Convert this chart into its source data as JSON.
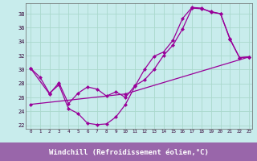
{
  "xlabel": "Windchill (Refroidissement éolien,°C)",
  "background_color": "#c8ecec",
  "grid_color": "#aad8cc",
  "line_color": "#990099",
  "xlabel_bg": "#9966aa",
  "xlim_min": -0.5,
  "xlim_max": 23.3,
  "ylim_min": 21.5,
  "ylim_max": 39.5,
  "xticks": [
    0,
    1,
    2,
    3,
    4,
    5,
    6,
    7,
    8,
    9,
    10,
    11,
    12,
    13,
    14,
    15,
    16,
    17,
    18,
    19,
    20,
    21,
    22,
    23
  ],
  "yticks": [
    22,
    24,
    26,
    28,
    30,
    32,
    34,
    36,
    38
  ],
  "curve1_x": [
    0,
    1,
    2,
    3,
    4,
    5,
    6,
    7,
    8,
    9,
    10,
    11,
    12,
    13,
    14,
    15,
    16,
    17,
    18,
    19,
    20,
    21,
    22,
    23
  ],
  "curve1_y": [
    30.2,
    28.9,
    26.6,
    27.8,
    24.4,
    23.7,
    22.3,
    22.1,
    22.2,
    23.2,
    25.0,
    27.6,
    30.0,
    31.9,
    32.5,
    34.2,
    37.3,
    38.9,
    38.8,
    38.2,
    38.0,
    34.3,
    31.7,
    31.8
  ],
  "curve2_x": [
    0,
    2,
    3,
    4,
    5,
    6,
    7,
    8,
    9,
    10,
    11,
    12,
    13,
    14,
    15,
    16,
    17,
    18,
    19,
    20,
    21,
    22,
    23
  ],
  "curve2_y": [
    30.2,
    26.5,
    28.1,
    25.1,
    26.6,
    27.5,
    27.2,
    26.2,
    26.8,
    26.0,
    27.7,
    28.5,
    30.0,
    32.0,
    33.5,
    35.8,
    38.8,
    38.7,
    38.3,
    38.0,
    34.4,
    31.7,
    31.8
  ],
  "curve3_x": [
    0,
    10,
    23
  ],
  "curve3_y": [
    25.0,
    26.5,
    31.8
  ]
}
